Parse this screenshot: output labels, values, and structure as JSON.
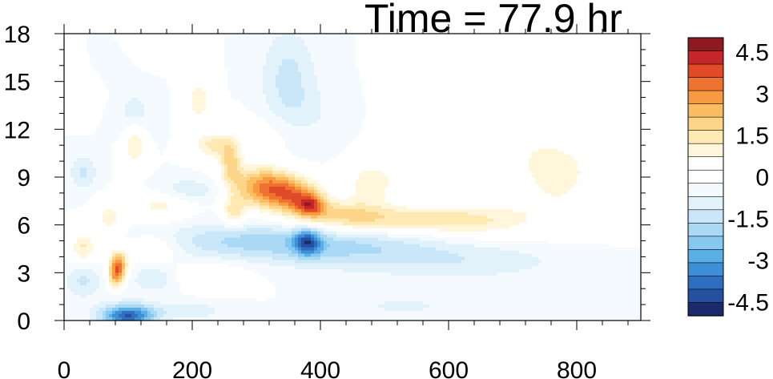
{
  "chart_data": {
    "type": "heatmap",
    "title": "Time = 77.9 hr",
    "xlabel": "",
    "ylabel": "",
    "xlim": [
      0,
      900
    ],
    "ylim": [
      0,
      18
    ],
    "x_ticks": [
      0,
      200,
      400,
      600,
      800
    ],
    "y_ticks": [
      0,
      3,
      6,
      9,
      12,
      15,
      18
    ],
    "x_tick_labels": [
      "0",
      "200",
      "400",
      "600",
      "800"
    ],
    "y_tick_labels": [
      "0",
      "3",
      "6",
      "9",
      "12",
      "15",
      "18"
    ],
    "grid": false,
    "colorbar": {
      "position": "right",
      "levels": [
        -5.0,
        -4.5,
        -4.0,
        -3.5,
        -3.0,
        -2.5,
        -2.0,
        -1.5,
        -1.0,
        -0.5,
        0,
        0.5,
        1.0,
        1.5,
        2.0,
        2.5,
        3.0,
        3.5,
        4.0,
        4.5,
        5.0
      ],
      "colors": [
        "#1a2a6b",
        "#2550a0",
        "#2f6fc2",
        "#3f8fd6",
        "#5aaee6",
        "#86c8ef",
        "#a9d9f4",
        "#c9e7f8",
        "#e2f2fb",
        "#f4fafd",
        "#ffffff",
        "#ffffff",
        "#fff6dc",
        "#fee9b3",
        "#fdd58a",
        "#fbbc62",
        "#f89a3f",
        "#ef7330",
        "#e04a26",
        "#c4262a",
        "#8c1a1f"
      ],
      "tick_values": [
        4.5,
        3,
        1.5,
        0,
        -1.5,
        -3,
        -4.5
      ],
      "tick_labels": [
        "4.5",
        "3",
        "1.5",
        "0",
        "-1.5",
        "-3",
        "-4.5"
      ]
    },
    "features": [
      {
        "type": "pos",
        "x": 310,
        "y": 8.4,
        "sx": 35,
        "sy": 0.9,
        "amp": 3.2
      },
      {
        "type": "pos",
        "x": 360,
        "y": 7.8,
        "sx": 30,
        "sy": 0.8,
        "amp": 2.8
      },
      {
        "type": "pos",
        "x": 385,
        "y": 7.2,
        "sx": 15,
        "sy": 0.5,
        "amp": 2.6
      },
      {
        "type": "pos",
        "x": 430,
        "y": 6.6,
        "sx": 50,
        "sy": 0.7,
        "amp": 1.7
      },
      {
        "type": "pos",
        "x": 520,
        "y": 6.3,
        "sx": 70,
        "sy": 0.6,
        "amp": 1.4
      },
      {
        "type": "pos",
        "x": 630,
        "y": 6.2,
        "sx": 60,
        "sy": 0.6,
        "amp": 1.0
      },
      {
        "type": "pos",
        "x": 480,
        "y": 8.7,
        "sx": 30,
        "sy": 1.0,
        "amp": 1.3
      },
      {
        "type": "pos",
        "x": 680,
        "y": 12.3,
        "sx": 80,
        "sy": 2.5,
        "amp": 0.9
      },
      {
        "type": "pos",
        "x": 775,
        "y": 9.3,
        "sx": 45,
        "sy": 1.4,
        "amp": 1.0
      },
      {
        "type": "pos",
        "x": 720,
        "y": 6.6,
        "sx": 110,
        "sy": 1.2,
        "amp": 0.6
      },
      {
        "type": "pos",
        "x": 85,
        "y": 3.5,
        "sx": 10,
        "sy": 0.6,
        "amp": 3.4
      },
      {
        "type": "pos",
        "x": 80,
        "y": 2.7,
        "sx": 8,
        "sy": 0.5,
        "amp": 2.2
      },
      {
        "type": "pos",
        "x": 260,
        "y": 10.0,
        "sx": 12,
        "sy": 1.0,
        "amp": 2.0
      },
      {
        "type": "pos",
        "x": 265,
        "y": 6.8,
        "sx": 12,
        "sy": 0.6,
        "amp": 1.7
      },
      {
        "type": "pos",
        "x": 230,
        "y": 11.0,
        "sx": 20,
        "sy": 0.6,
        "amp": 1.5
      },
      {
        "type": "pos",
        "x": 110,
        "y": 11.0,
        "sx": 12,
        "sy": 1.0,
        "amp": 1.5
      },
      {
        "type": "pos",
        "x": 150,
        "y": 7.3,
        "sx": 30,
        "sy": 0.7,
        "amp": 1.2
      },
      {
        "type": "pos",
        "x": 30,
        "y": 4.6,
        "sx": 15,
        "sy": 0.7,
        "amp": 1.6
      },
      {
        "type": "pos",
        "x": 210,
        "y": 13.8,
        "sx": 15,
        "sy": 1.2,
        "amp": 1.3
      },
      {
        "type": "pos",
        "x": 30,
        "y": 15.0,
        "sx": 20,
        "sy": 1.0,
        "amp": 1.0
      },
      {
        "type": "pos",
        "x": 150,
        "y": 17.5,
        "sx": 30,
        "sy": 0.7,
        "amp": 0.9
      },
      {
        "type": "pos",
        "x": 230,
        "y": 2.8,
        "sx": 40,
        "sy": 0.6,
        "amp": 0.9
      },
      {
        "type": "pos",
        "x": 140,
        "y": 4.5,
        "sx": 25,
        "sy": 0.6,
        "amp": 1.0
      },
      {
        "type": "pos",
        "x": 70,
        "y": 6.5,
        "sx": 15,
        "sy": 0.8,
        "amp": 1.2
      },
      {
        "type": "pos",
        "x": 330,
        "y": 11.8,
        "sx": 50,
        "sy": 1.0,
        "amp": 0.6
      },
      {
        "type": "neg",
        "x": 100,
        "y": 0.3,
        "sx": 30,
        "sy": 0.5,
        "amp": -4.0
      },
      {
        "type": "neg",
        "x": 380,
        "y": 4.9,
        "sx": 15,
        "sy": 0.6,
        "amp": -2.8
      },
      {
        "type": "neg",
        "x": 430,
        "y": 4.7,
        "sx": 100,
        "sy": 0.9,
        "amp": -1.4
      },
      {
        "type": "neg",
        "x": 620,
        "y": 3.8,
        "sx": 120,
        "sy": 0.9,
        "amp": -0.9
      },
      {
        "type": "neg",
        "x": 270,
        "y": 5.0,
        "sx": 90,
        "sy": 0.8,
        "amp": -1.3
      },
      {
        "type": "neg",
        "x": 350,
        "y": 15.5,
        "sx": 30,
        "sy": 2.0,
        "amp": -1.1
      },
      {
        "type": "neg",
        "x": 370,
        "y": 12.5,
        "sx": 40,
        "sy": 1.5,
        "amp": -0.7
      },
      {
        "type": "neg",
        "x": 190,
        "y": 8.2,
        "sx": 40,
        "sy": 0.5,
        "amp": -1.0
      },
      {
        "type": "neg",
        "x": 30,
        "y": 9.3,
        "sx": 15,
        "sy": 0.7,
        "amp": -1.1
      },
      {
        "type": "neg",
        "x": 30,
        "y": 2.5,
        "sx": 20,
        "sy": 0.8,
        "amp": -1.1
      },
      {
        "type": "neg",
        "x": 140,
        "y": 2.6,
        "sx": 25,
        "sy": 0.6,
        "amp": -1.0
      },
      {
        "type": "neg",
        "x": 200,
        "y": 0.6,
        "sx": 40,
        "sy": 0.4,
        "amp": -0.8
      },
      {
        "type": "neg",
        "x": 530,
        "y": 0.9,
        "sx": 40,
        "sy": 0.3,
        "amp": -0.8
      },
      {
        "type": "neg",
        "x": 750,
        "y": 0.5,
        "sx": 30,
        "sy": 0.3,
        "amp": -0.5
      },
      {
        "type": "neg",
        "x": 110,
        "y": 13.0,
        "sx": 20,
        "sy": 1.0,
        "amp": -0.8
      },
      {
        "type": "neg",
        "x": 60,
        "y": 16.0,
        "sx": 20,
        "sy": 0.8,
        "amp": -0.6
      }
    ]
  }
}
